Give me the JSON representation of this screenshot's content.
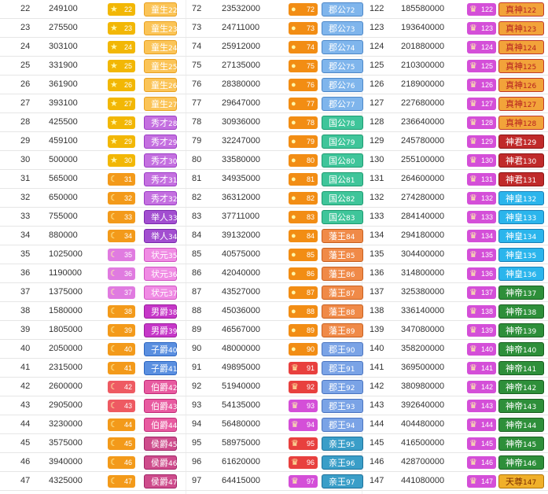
{
  "colors": {
    "badge": {
      "star": "#f2b705",
      "moon_pink": "#e07be0",
      "moon_orange": "#f39a1a",
      "moon_red": "#ee5a62",
      "sun": "#f28d14",
      "crown_red": "#e8403e",
      "crown_pink": "#d44fd8"
    },
    "title": {
      "tongsheng": {
        "bg": "#fbc457",
        "fg": "#ffffff",
        "border": "#e8a020"
      },
      "xiucai": {
        "bg": "#c46fe0",
        "fg": "#ffffff",
        "border": "#9a3cc4"
      },
      "juren": {
        "bg": "#a24ed0",
        "fg": "#ffffff",
        "border": "#7a28ad"
      },
      "zhuangyuan": {
        "bg": "#f08be4",
        "fg": "#ffffff",
        "border": "#d050c0"
      },
      "nanjue": {
        "bg": "#c637c8",
        "fg": "#ffffff",
        "border": "#9a1d9c"
      },
      "zijue": {
        "bg": "#5a8fe0",
        "fg": "#ffffff",
        "border": "#2c65c0"
      },
      "bojue": {
        "bg": "#e85aa0",
        "fg": "#ffffff",
        "border": "#c12c78"
      },
      "houjue": {
        "bg": "#ce4c8c",
        "fg": "#ffffff",
        "border": "#a02466"
      },
      "jungong": {
        "bg": "#7fb5ec",
        "fg": "#ffffff",
        "border": "#4c87c8"
      },
      "guogong": {
        "bg": "#3fc59a",
        "fg": "#ffffff",
        "border": "#1d9a70"
      },
      "fanwang": {
        "bg": "#f08a48",
        "fg": "#ffffff",
        "border": "#c75f1f"
      },
      "junwang": {
        "bg": "#7aa3e6",
        "fg": "#ffffff",
        "border": "#4a74c0"
      },
      "qinwang": {
        "bg": "#3a9ec8",
        "fg": "#ffffff",
        "border": "#1d709a"
      },
      "zhenshen": {
        "bg": "#f2a33a",
        "fg": "#b62020",
        "border": "#c0392b"
      },
      "shenjun": {
        "bg": "#c02a2a",
        "fg": "#ffffff",
        "border": "#8a1414"
      },
      "shenhuang": {
        "bg": "#2bb5ec",
        "fg": "#ffffff",
        "border": "#1a7fb5"
      },
      "shendi": {
        "bg": "#2e8f3a",
        "fg": "#ffffff",
        "border": "#1a5e20"
      },
      "tianzun": {
        "bg": "#f0b02a",
        "fg": "#7a2a00",
        "border": "#b0760a"
      }
    }
  },
  "icons": {
    "star": "★",
    "moon": "☾",
    "sun": "●",
    "crown": "♛"
  },
  "rows": [
    {
      "c1": {
        "level": "22",
        "exp": "249100",
        "icon": "star",
        "badge": "star",
        "title": "童生",
        "tnum": "22",
        "style": "tongsheng"
      },
      "c2": {
        "level": "72",
        "exp": "23532000",
        "icon": "sun",
        "badge": "sun",
        "title": "郡公",
        "tnum": "72",
        "style": "jungong"
      },
      "c3": {
        "level": "122",
        "exp": "185580000",
        "icon": "crown",
        "badge": "crown_pink",
        "title": "真神",
        "tnum": "122",
        "style": "zhenshen"
      }
    },
    {
      "c1": {
        "level": "23",
        "exp": "275500",
        "icon": "star",
        "badge": "star",
        "title": "童生",
        "tnum": "23",
        "style": "tongsheng"
      },
      "c2": {
        "level": "73",
        "exp": "24711000",
        "icon": "sun",
        "badge": "sun",
        "title": "郡公",
        "tnum": "73",
        "style": "jungong"
      },
      "c3": {
        "level": "123",
        "exp": "193640000",
        "icon": "crown",
        "badge": "crown_pink",
        "title": "真神",
        "tnum": "123",
        "style": "zhenshen"
      }
    },
    {
      "c1": {
        "level": "24",
        "exp": "303100",
        "icon": "star",
        "badge": "star",
        "title": "童生",
        "tnum": "24",
        "style": "tongsheng"
      },
      "c2": {
        "level": "74",
        "exp": "25912000",
        "icon": "sun",
        "badge": "sun",
        "title": "郡公",
        "tnum": "74",
        "style": "jungong"
      },
      "c3": {
        "level": "124",
        "exp": "201880000",
        "icon": "crown",
        "badge": "crown_pink",
        "title": "真神",
        "tnum": "124",
        "style": "zhenshen"
      }
    },
    {
      "c1": {
        "level": "25",
        "exp": "331900",
        "icon": "star",
        "badge": "star",
        "title": "童生",
        "tnum": "25",
        "style": "tongsheng"
      },
      "c2": {
        "level": "75",
        "exp": "27135000",
        "icon": "sun",
        "badge": "sun",
        "title": "郡公",
        "tnum": "75",
        "style": "jungong"
      },
      "c3": {
        "level": "125",
        "exp": "210300000",
        "icon": "crown",
        "badge": "crown_pink",
        "title": "真神",
        "tnum": "125",
        "style": "zhenshen"
      }
    },
    {
      "c1": {
        "level": "26",
        "exp": "361900",
        "icon": "star",
        "badge": "star",
        "title": "童生",
        "tnum": "26",
        "style": "tongsheng"
      },
      "c2": {
        "level": "76",
        "exp": "28380000",
        "icon": "sun",
        "badge": "sun",
        "title": "郡公",
        "tnum": "76",
        "style": "jungong"
      },
      "c3": {
        "level": "126",
        "exp": "218900000",
        "icon": "crown",
        "badge": "crown_pink",
        "title": "真神",
        "tnum": "126",
        "style": "zhenshen"
      }
    },
    {
      "c1": {
        "level": "27",
        "exp": "393100",
        "icon": "star",
        "badge": "star",
        "title": "童生",
        "tnum": "27",
        "style": "tongsheng"
      },
      "c2": {
        "level": "77",
        "exp": "29647000",
        "icon": "sun",
        "badge": "sun",
        "title": "郡公",
        "tnum": "77",
        "style": "jungong"
      },
      "c3": {
        "level": "127",
        "exp": "227680000",
        "icon": "crown",
        "badge": "crown_pink",
        "title": "真神",
        "tnum": "127",
        "style": "zhenshen"
      }
    },
    {
      "c1": {
        "level": "28",
        "exp": "425500",
        "icon": "star",
        "badge": "star",
        "title": "秀才",
        "tnum": "28",
        "style": "xiucai"
      },
      "c2": {
        "level": "78",
        "exp": "30936000",
        "icon": "sun",
        "badge": "sun",
        "title": "国公",
        "tnum": "78",
        "style": "guogong"
      },
      "c3": {
        "level": "128",
        "exp": "236640000",
        "icon": "crown",
        "badge": "crown_pink",
        "title": "真神",
        "tnum": "128",
        "style": "zhenshen"
      }
    },
    {
      "c1": {
        "level": "29",
        "exp": "459100",
        "icon": "star",
        "badge": "star",
        "title": "秀才",
        "tnum": "29",
        "style": "xiucai"
      },
      "c2": {
        "level": "79",
        "exp": "32247000",
        "icon": "sun",
        "badge": "sun",
        "title": "国公",
        "tnum": "79",
        "style": "guogong"
      },
      "c3": {
        "level": "129",
        "exp": "245780000",
        "icon": "crown",
        "badge": "crown_pink",
        "title": "神君",
        "tnum": "129",
        "style": "shenjun"
      }
    },
    {
      "c1": {
        "level": "30",
        "exp": "500000",
        "icon": "star",
        "badge": "star",
        "title": "秀才",
        "tnum": "30",
        "style": "xiucai"
      },
      "c2": {
        "level": "80",
        "exp": "33580000",
        "icon": "sun",
        "badge": "sun",
        "title": "国公",
        "tnum": "80",
        "style": "guogong"
      },
      "c3": {
        "level": "130",
        "exp": "255100000",
        "icon": "crown",
        "badge": "crown_pink",
        "title": "神君",
        "tnum": "130",
        "style": "shenjun"
      }
    },
    {
      "c1": {
        "level": "31",
        "exp": "565000",
        "icon": "moon",
        "badge": "moon_orange",
        "title": "秀才",
        "tnum": "31",
        "style": "xiucai"
      },
      "c2": {
        "level": "81",
        "exp": "34935000",
        "icon": "sun",
        "badge": "sun",
        "title": "国公",
        "tnum": "81",
        "style": "guogong"
      },
      "c3": {
        "level": "131",
        "exp": "264600000",
        "icon": "crown",
        "badge": "crown_pink",
        "title": "神君",
        "tnum": "131",
        "style": "shenjun"
      }
    },
    {
      "c1": {
        "level": "32",
        "exp": "650000",
        "icon": "moon",
        "badge": "moon_orange",
        "title": "秀才",
        "tnum": "32",
        "style": "xiucai"
      },
      "c2": {
        "level": "82",
        "exp": "36312000",
        "icon": "sun",
        "badge": "sun",
        "title": "国公",
        "tnum": "82",
        "style": "guogong"
      },
      "c3": {
        "level": "132",
        "exp": "274280000",
        "icon": "crown",
        "badge": "crown_pink",
        "title": "神皇",
        "tnum": "132",
        "style": "shenhuang"
      }
    },
    {
      "c1": {
        "level": "33",
        "exp": "755000",
        "icon": "moon",
        "badge": "moon_orange",
        "title": "举人",
        "tnum": "33",
        "style": "juren"
      },
      "c2": {
        "level": "83",
        "exp": "37711000",
        "icon": "sun",
        "badge": "sun",
        "title": "国公",
        "tnum": "83",
        "style": "guogong"
      },
      "c3": {
        "level": "133",
        "exp": "284140000",
        "icon": "crown",
        "badge": "crown_pink",
        "title": "神皇",
        "tnum": "133",
        "style": "shenhuang"
      }
    },
    {
      "c1": {
        "level": "34",
        "exp": "880000",
        "icon": "moon",
        "badge": "moon_orange",
        "title": "举人",
        "tnum": "34",
        "style": "juren"
      },
      "c2": {
        "level": "84",
        "exp": "39132000",
        "icon": "sun",
        "badge": "sun",
        "title": "藩王",
        "tnum": "84",
        "style": "fanwang"
      },
      "c3": {
        "level": "134",
        "exp": "294180000",
        "icon": "crown",
        "badge": "crown_pink",
        "title": "神皇",
        "tnum": "134",
        "style": "shenhuang"
      }
    },
    {
      "c1": {
        "level": "35",
        "exp": "1025000",
        "icon": "moon",
        "badge": "moon_pink",
        "title": "状元",
        "tnum": "35",
        "style": "zhuangyuan"
      },
      "c2": {
        "level": "85",
        "exp": "40575000",
        "icon": "sun",
        "badge": "sun",
        "title": "藩王",
        "tnum": "85",
        "style": "fanwang"
      },
      "c3": {
        "level": "135",
        "exp": "304400000",
        "icon": "crown",
        "badge": "crown_pink",
        "title": "神皇",
        "tnum": "135",
        "style": "shenhuang"
      }
    },
    {
      "c1": {
        "level": "36",
        "exp": "1190000",
        "icon": "moon",
        "badge": "moon_pink",
        "title": "状元",
        "tnum": "36",
        "style": "zhuangyuan"
      },
      "c2": {
        "level": "86",
        "exp": "42040000",
        "icon": "sun",
        "badge": "sun",
        "title": "藩王",
        "tnum": "86",
        "style": "fanwang"
      },
      "c3": {
        "level": "136",
        "exp": "314800000",
        "icon": "crown",
        "badge": "crown_pink",
        "title": "神皇",
        "tnum": "136",
        "style": "shenhuang"
      }
    },
    {
      "c1": {
        "level": "37",
        "exp": "1375000",
        "icon": "moon",
        "badge": "moon_pink",
        "title": "状元",
        "tnum": "37",
        "style": "zhuangyuan"
      },
      "c2": {
        "level": "87",
        "exp": "43527000",
        "icon": "sun",
        "badge": "sun",
        "title": "藩王",
        "tnum": "87",
        "style": "fanwang"
      },
      "c3": {
        "level": "137",
        "exp": "325380000",
        "icon": "crown",
        "badge": "crown_pink",
        "title": "神帝",
        "tnum": "137",
        "style": "shendi"
      }
    },
    {
      "c1": {
        "level": "38",
        "exp": "1580000",
        "icon": "moon",
        "badge": "moon_orange",
        "title": "男爵",
        "tnum": "38",
        "style": "nanjue"
      },
      "c2": {
        "level": "88",
        "exp": "45036000",
        "icon": "sun",
        "badge": "sun",
        "title": "藩王",
        "tnum": "88",
        "style": "fanwang"
      },
      "c3": {
        "level": "138",
        "exp": "336140000",
        "icon": "crown",
        "badge": "crown_pink",
        "title": "神帝",
        "tnum": "138",
        "style": "shendi"
      }
    },
    {
      "c1": {
        "level": "39",
        "exp": "1805000",
        "icon": "moon",
        "badge": "moon_orange",
        "title": "男爵",
        "tnum": "39",
        "style": "nanjue"
      },
      "c2": {
        "level": "89",
        "exp": "46567000",
        "icon": "sun",
        "badge": "sun",
        "title": "藩王",
        "tnum": "89",
        "style": "fanwang"
      },
      "c3": {
        "level": "139",
        "exp": "347080000",
        "icon": "crown",
        "badge": "crown_pink",
        "title": "神帝",
        "tnum": "139",
        "style": "shendi"
      }
    },
    {
      "c1": {
        "level": "40",
        "exp": "2050000",
        "icon": "moon",
        "badge": "moon_orange",
        "title": "子爵",
        "tnum": "40",
        "style": "zijue"
      },
      "c2": {
        "level": "90",
        "exp": "48000000",
        "icon": "sun",
        "badge": "sun_pink",
        "title": "郡王",
        "tnum": "90",
        "style": "junwang"
      },
      "c3": {
        "level": "140",
        "exp": "358200000",
        "icon": "crown",
        "badge": "crown_pink",
        "title": "神帝",
        "tnum": "140",
        "style": "shendi"
      }
    },
    {
      "c1": {
        "level": "41",
        "exp": "2315000",
        "icon": "moon",
        "badge": "moon_orange",
        "title": "子爵",
        "tnum": "41",
        "style": "zijue"
      },
      "c2": {
        "level": "91",
        "exp": "49895000",
        "icon": "crown",
        "badge": "crown_red",
        "title": "郡王",
        "tnum": "91",
        "style": "junwang"
      },
      "c3": {
        "level": "141",
        "exp": "369500000",
        "icon": "crown",
        "badge": "crown_pink",
        "title": "神帝",
        "tnum": "141",
        "style": "shendi"
      }
    },
    {
      "c1": {
        "level": "42",
        "exp": "2600000",
        "icon": "moon",
        "badge": "moon_red",
        "title": "伯爵",
        "tnum": "42",
        "style": "bojue"
      },
      "c2": {
        "level": "92",
        "exp": "51940000",
        "icon": "crown",
        "badge": "crown_red",
        "title": "郡王",
        "tnum": "92",
        "style": "junwang"
      },
      "c3": {
        "level": "142",
        "exp": "380980000",
        "icon": "crown",
        "badge": "crown_pink",
        "title": "神帝",
        "tnum": "142",
        "style": "shendi"
      }
    },
    {
      "c1": {
        "level": "43",
        "exp": "2905000",
        "icon": "moon",
        "badge": "moon_red",
        "title": "伯爵",
        "tnum": "43",
        "style": "bojue"
      },
      "c2": {
        "level": "93",
        "exp": "54135000",
        "icon": "crown",
        "badge": "crown_pink",
        "title": "郡王",
        "tnum": "93",
        "style": "junwang"
      },
      "c3": {
        "level": "143",
        "exp": "392640000",
        "icon": "crown",
        "badge": "crown_pink",
        "title": "神帝",
        "tnum": "143",
        "style": "shendi"
      }
    },
    {
      "c1": {
        "level": "44",
        "exp": "3230000",
        "icon": "moon",
        "badge": "moon_orange",
        "title": "伯爵",
        "tnum": "44",
        "style": "bojue"
      },
      "c2": {
        "level": "94",
        "exp": "56480000",
        "icon": "crown",
        "badge": "crown_pink",
        "title": "郡王",
        "tnum": "94",
        "style": "junwang"
      },
      "c3": {
        "level": "144",
        "exp": "404480000",
        "icon": "crown",
        "badge": "crown_pink",
        "title": "神帝",
        "tnum": "144",
        "style": "shendi"
      }
    },
    {
      "c1": {
        "level": "45",
        "exp": "3575000",
        "icon": "moon",
        "badge": "moon_orange",
        "title": "侯爵",
        "tnum": "45",
        "style": "houjue"
      },
      "c2": {
        "level": "95",
        "exp": "58975000",
        "icon": "crown",
        "badge": "crown_red",
        "title": "亲王",
        "tnum": "95",
        "style": "qinwang"
      },
      "c3": {
        "level": "145",
        "exp": "416500000",
        "icon": "crown",
        "badge": "crown_pink",
        "title": "神帝",
        "tnum": "145",
        "style": "shendi"
      }
    },
    {
      "c1": {
        "level": "46",
        "exp": "3940000",
        "icon": "moon",
        "badge": "moon_orange",
        "title": "侯爵",
        "tnum": "46",
        "style": "houjue"
      },
      "c2": {
        "level": "96",
        "exp": "61620000",
        "icon": "crown",
        "badge": "crown_red",
        "title": "亲王",
        "tnum": "96",
        "style": "qinwang"
      },
      "c3": {
        "level": "146",
        "exp": "428700000",
        "icon": "crown",
        "badge": "crown_pink",
        "title": "神帝",
        "tnum": "146",
        "style": "shendi"
      }
    },
    {
      "c1": {
        "level": "47",
        "exp": "4325000",
        "icon": "moon",
        "badge": "moon_orange",
        "title": "侯爵",
        "tnum": "47",
        "style": "houjue"
      },
      "c2": {
        "level": "97",
        "exp": "64415000",
        "icon": "crown",
        "badge": "crown_pink",
        "title": "亲王",
        "tnum": "97",
        "style": "qinwang"
      },
      "c3": {
        "level": "147",
        "exp": "441080000",
        "icon": "crown",
        "badge": "crown_pink",
        "title": "天尊",
        "tnum": "147",
        "style": "tianzun"
      }
    }
  ]
}
